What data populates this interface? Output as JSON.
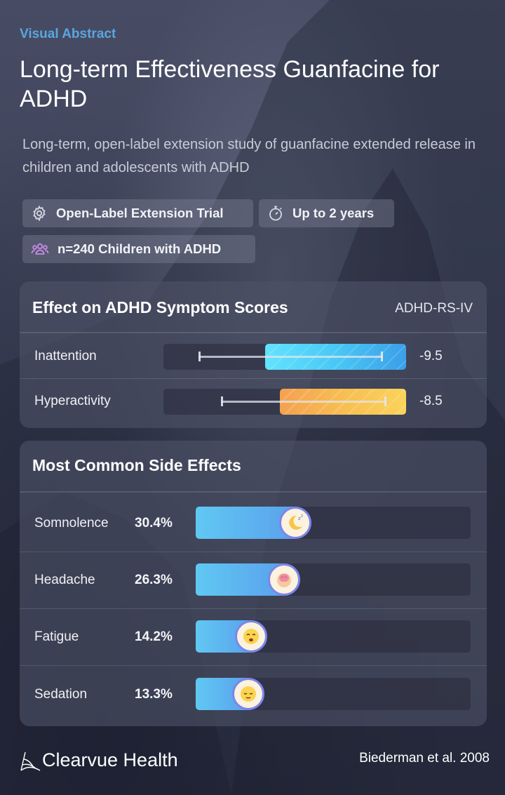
{
  "header": {
    "eyebrow": "Visual Abstract",
    "title": "Long-term Effectiveness Guanfacine for ADHD",
    "subtitle": "Long-term, open-label extension study of guanfacine extended release in children and adolescents with ADHD"
  },
  "chips": {
    "design": {
      "label": "Open-Label Extension Trial",
      "icon": "gear-icon"
    },
    "duration": {
      "label": "Up to 2 years",
      "icon": "stopwatch-icon"
    },
    "population": {
      "label": "n=240 Children with ADHD",
      "icon": "people-icon"
    }
  },
  "symptom_card": {
    "title": "Effect on ADHD Symptom Scores",
    "tag": "ADHD-RS-IV",
    "rows": [
      {
        "label": "Inattention",
        "value_label": "-9.5",
        "value": -9.5
      },
      {
        "label": "Hyperactivity",
        "value_label": "-8.5",
        "value": -8.5
      }
    ]
  },
  "side_effects_card": {
    "title": "Most Common Side Effects",
    "rows": [
      {
        "label": "Somnolence",
        "pct_label": "30.4%",
        "pct": 30.4,
        "icon": "sleeping-moon-icon"
      },
      {
        "label": "Headache",
        "pct_label": "26.3%",
        "pct": 26.3,
        "icon": "brain-icon"
      },
      {
        "label": "Fatigue",
        "pct_label": "14.2%",
        "pct": 14.2,
        "icon": "tired-face-icon"
      },
      {
        "label": "Sedation",
        "pct_label": "13.3%",
        "pct": 13.3,
        "icon": "sleepy-face-icon"
      }
    ]
  },
  "footer": {
    "brand": "Clearvue Health",
    "citation": "Biederman et al. 2008"
  },
  "colors": {
    "accent": "#5aa5e0",
    "inattention_bar": "#49c8f5",
    "hyperactivity_bar": "#f8be52",
    "side_effect_bar": "#5aa0ec"
  }
}
